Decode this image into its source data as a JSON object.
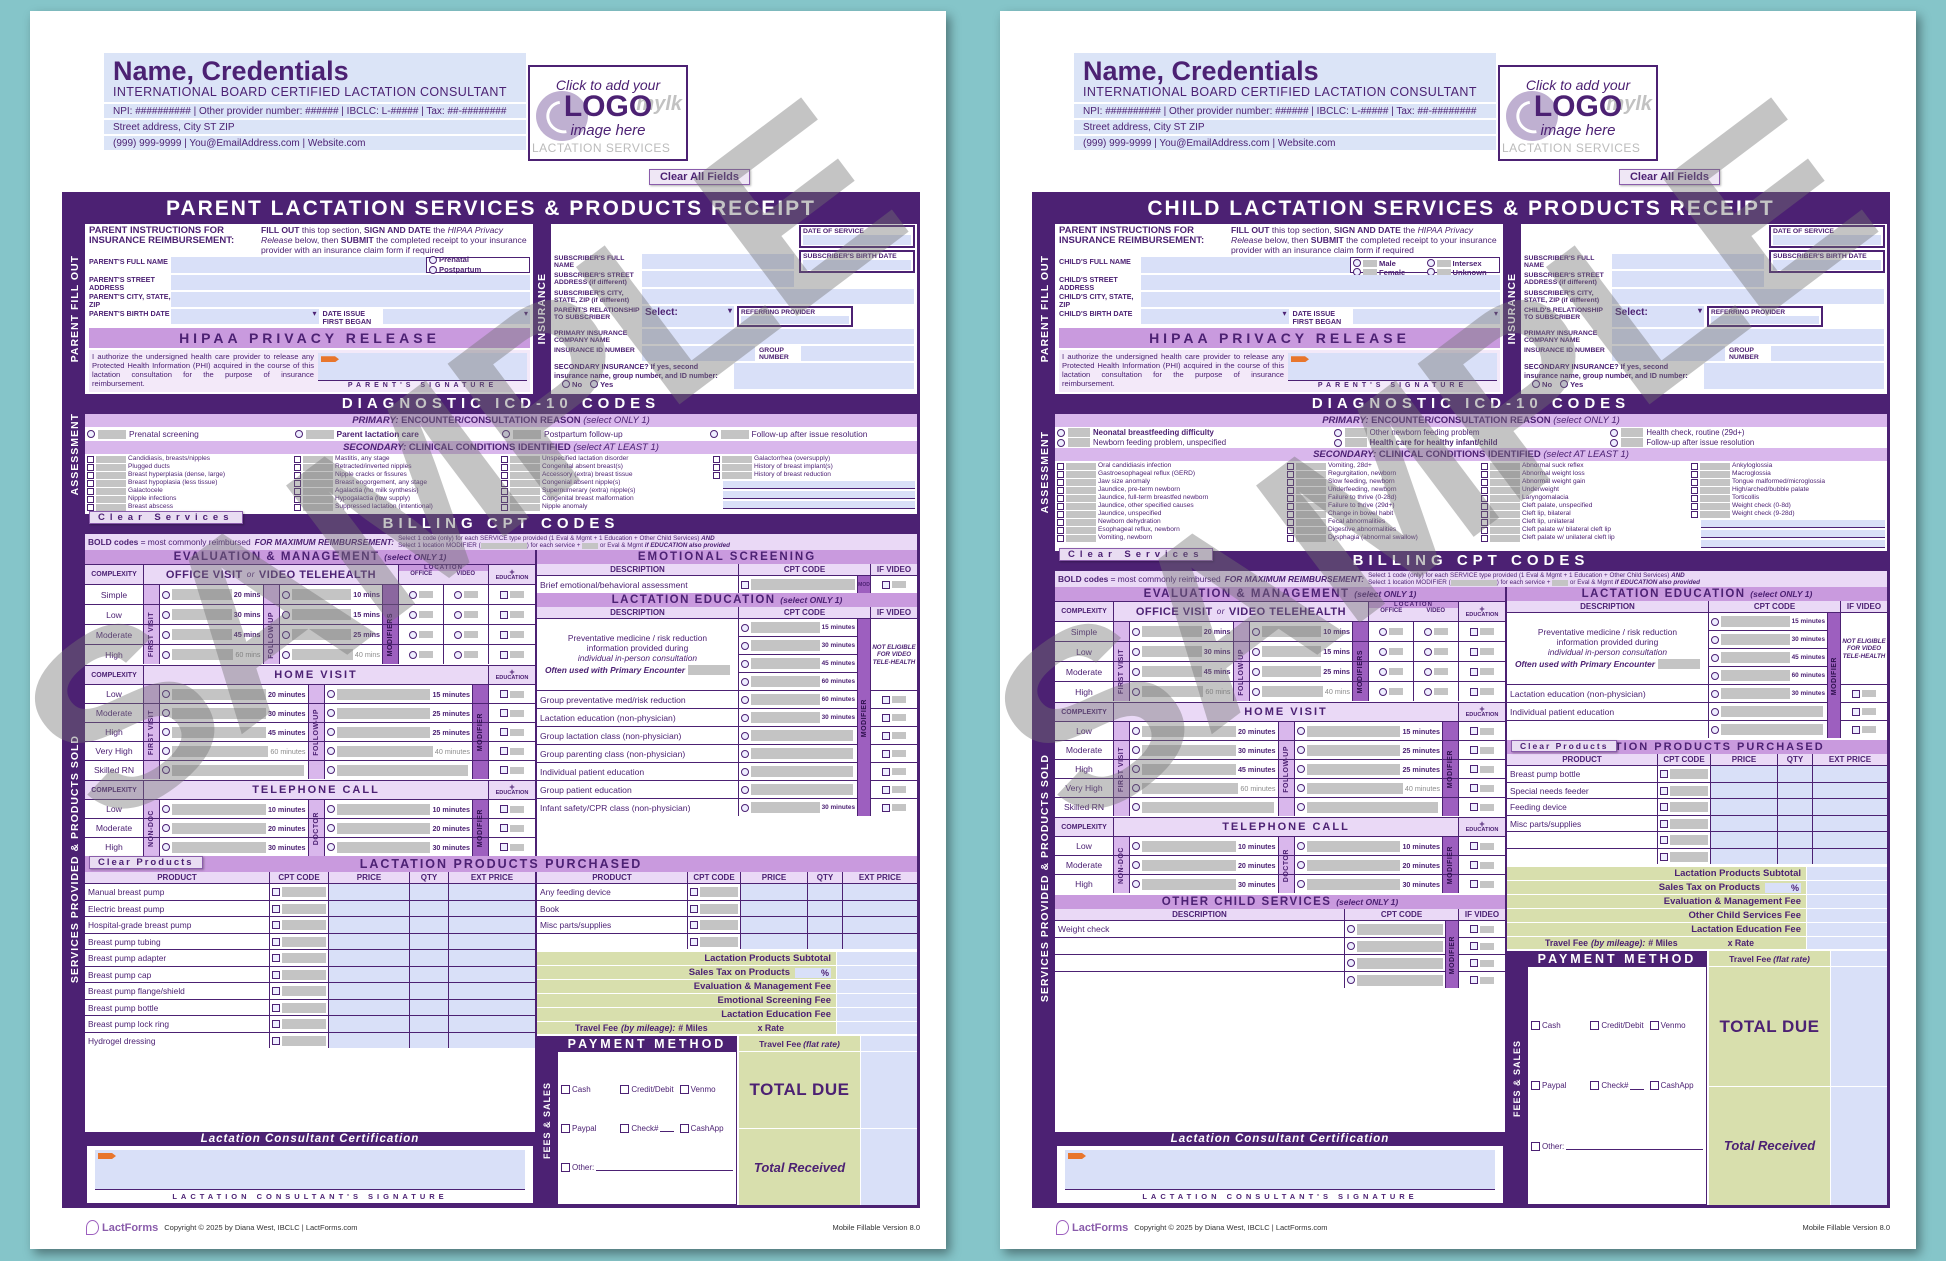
{
  "shared": {
    "watermark": "SAMPLE",
    "header": {
      "name": "Name, Credentials",
      "credential": "INTERNATIONAL BOARD CERTIFIED LACTATION CONSULTANT",
      "npi_line": "NPI: ########## | Other provider number: ###### | IBCLC: L-##### | Tax:  ##-########",
      "address_line": "Street address, City ST ZIP",
      "contact_line": "(999) 999-9999 | You@EmailAddress.com | Website.com",
      "logo_line1": "Click to add your",
      "logo_line2": "LOGO",
      "logo_line3": "image here",
      "logo_wm1": "mylk",
      "logo_wm2": "LACTATION SERVICES",
      "clear_all": "Clear All Fields"
    },
    "rails": {
      "fill_out": "PARENT FILL OUT",
      "insurance": "INSURANCE",
      "assessment": "ASSESSMENT",
      "services": "SERVICES PROVIDED & PRODUCTS SOLD",
      "fees": "FEES & SALES"
    },
    "instructions": {
      "s1": "FILL OUT",
      "s2": " this top section, ",
      "s3": "SIGN AND DATE",
      "s4": " the ",
      "s5": "HIPAA Privacy Release",
      "s6": " below, then ",
      "s7": "SUBMIT",
      "s8": " the completed receipt to your insurance provider with an insurance claim form if required"
    },
    "fields": {
      "date_issue": "DATE ISSUE FIRST BEGAN",
      "date_of_service": "DATE OF SERVICE",
      "subscriber_birth": "SUBSCRIBER'S BIRTH DATE",
      "sub_name": "SUBSCRIBER'S FULL NAME",
      "sub_street": "SUBSCRIBER'S STREET ADDRESS (if different)",
      "sub_city": "SUBSCRIBER'S CITY, STATE, ZIP (if different)",
      "select": "Select:",
      "referring": "REFERRING PROVIDER",
      "primary_ins": "PRIMARY INSURANCE COMPANY NAME",
      "ins_id": "INSURANCE ID NUMBER",
      "group_num": "GROUP NUMBER",
      "secondary_q": "SECONDARY INSURANCE?  If yes, second insurance name, group number, and ID number:",
      "no": "No",
      "yes": "Yes"
    },
    "hipaa": {
      "title": "HIPAA PRIVACY RELEASE",
      "body": "I authorize the undersigned health care provider to release any Protected Health Information (PHI) acquired in the course of this lactation consultation for the purpose of insurance reimbursement.",
      "parent_sig": "PARENT'S SIGNATURE"
    },
    "diagnostic": {
      "title": "DIAGNOSTIC ICD-10 CODES",
      "primary_label": "PRIMARY:",
      "primary_text": "ENCOUNTER/CONSULTATION REASON",
      "primary_note": "(select ONLY 1)",
      "secondary_label": "SECONDARY:",
      "secondary_text": "CLINICAL CONDITIONS IDENTIFIED",
      "secondary_note": "(select AT LEAST 1)"
    },
    "billing": {
      "clear_services": "Clear Services",
      "title": "BILLING CPT CODES",
      "bold_note_b": "BOLD codes",
      "bold_note_r": " = most commonly reimbursed",
      "max_note": "FOR MAXIMUM REIMBURSEMENT:",
      "fine1a": "Select 1 code (only) for each SERVICE type provided (1 Eval & Mgmt + 1 Education + Other Child Services) ",
      "fine1b": "AND",
      "fine2a": "Select 1 location MODIFIER (",
      "fine2b": ") for each service + ",
      "fine2c": " or Eval & Mgmt ",
      "fine2d": "if EDUCATION also provided"
    },
    "em": {
      "title": "EVALUATION & MANAGEMENT",
      "note": "(select ONLY 1)",
      "complexity": "COMPLEXITY",
      "ov1": "OFFICE VISIT",
      "ov_or": "or",
      "ov2": "VIDEO TELEHEALTH",
      "location": "LOCATION",
      "office": "OFFICE",
      "video": "VIDEO",
      "plus": "+",
      "education": "EDUCATION",
      "first_visit": "FIRST VISIT",
      "follow_up": "FOLLOW-UP",
      "modifiers": "MODIFIERS",
      "modifier": "MODIFIER",
      "rows": [
        {
          "c": "Simple",
          "m1": "20 mins",
          "m2": "10 mins"
        },
        {
          "c": "Low",
          "m1": "30 mins",
          "m2": "15 mins"
        },
        {
          "c": "Moderate",
          "m1": "45 mins",
          "m2": "25 mins"
        },
        {
          "c": "High",
          "m1": "60 mins",
          "m2": "40 mins",
          "dim": 1
        }
      ]
    },
    "home": {
      "title": "HOME VISIT",
      "rows": [
        {
          "c": "Low",
          "m1": "20 minutes",
          "m2": "15 minutes"
        },
        {
          "c": "Moderate",
          "m1": "30 minutes",
          "m2": "25 minutes"
        },
        {
          "c": "High",
          "m1": "45 minutes",
          "m2": "25 minutes"
        },
        {
          "c": "Very High",
          "m1": "60 minutes",
          "m2": "40 minutes",
          "dim": 1
        },
        {
          "c": "Skilled RN",
          "m1": "",
          "m2": ""
        }
      ]
    },
    "phone": {
      "title": "TELEPHONE CALL",
      "nondoc": "NON-DOC",
      "doctor": "DOCTOR",
      "rows": [
        {
          "c": "Low",
          "m1": "10 minutes",
          "m2": "10 minutes"
        },
        {
          "c": "Moderate",
          "m1": "20 minutes",
          "m2": "20 minutes"
        },
        {
          "c": "High",
          "m1": "30 minutes",
          "m2": "30 minutes"
        }
      ]
    },
    "tables": {
      "description": "DESCRIPTION",
      "cpt_code": "CPT CODE",
      "if_video": "IF VIDEO",
      "mod": "MOD",
      "product": "PRODUCT",
      "price": "PRICE",
      "qty": "QTY",
      "ext_price": "EXT PRICE"
    },
    "education": {
      "title": "LACTATION EDUCATION",
      "note": "(select ONLY 1)",
      "prev1": "Preventative medicine / risk reduction",
      "prev2": "information provided during",
      "prev3": "individual in-person consultation",
      "prev_note": "Often used with Primary Encounter",
      "not_eligible": "NOT ELIGIBLE FOR VIDEO TELE-HEALTH",
      "prev_rows": [
        {
          "m": "15 minutes"
        },
        {
          "m": "30 minutes"
        },
        {
          "m": "45 minutes"
        },
        {
          "m": "60 minutes",
          "b": 1
        }
      ]
    },
    "products": {
      "title": "LACTATION PRODUCTS PURCHASED",
      "clear": "Clear Products"
    },
    "fees": {
      "pct": "%",
      "travel_l1": "Travel Fee ",
      "travel_l2": "(by mileage):",
      "miles": "# Miles",
      "x_rate": "x Rate",
      "travel_flat1": "Travel Fee ",
      "travel_flat2": "(flat rate)",
      "total_due": "TOTAL DUE",
      "total_received": "Total Received"
    },
    "payment": {
      "title": "PAYMENT METHOD",
      "cash": "Cash",
      "credit": "Credit/Debit",
      "venmo": "Venmo",
      "paypal": "Paypal",
      "check": "Check#",
      "cashapp": "CashApp",
      "other": "Other:"
    },
    "cert": {
      "title": "Lactation Consultant Certification",
      "sig": "LACTATION CONSULTANT'S SIGNATURE"
    },
    "footer": {
      "logo": "LactForms",
      "copyright": "Copyright © 2025 by Diana West, IBCLC | LactForms.com",
      "version": "Mobile Fillable Version 8.0"
    }
  },
  "parent": {
    "title": "PARENT LACTATION SERVICES & PRODUCTS RECEIPT",
    "instr_label": "PARENT INSTRUCTIONS FOR INSURANCE REIMBURSEMENT:",
    "f_name": "PARENT'S FULL NAME",
    "f_street": "PARENT'S STREET ADDRESS",
    "f_city": "PARENT'S CITY, STATE, ZIP",
    "f_birth": "PARENT'S BIRTH DATE",
    "rel_label": "PARENT'S RELATIONSHIP TO SUBSCRIBER",
    "radios": [
      {
        "t": "Prenatal"
      },
      {
        "t": "Postpartum"
      }
    ],
    "primary": [
      {
        "t": "Prenatal screening"
      },
      {
        "t": "Parent lactation care",
        "b": 1
      },
      {
        "t": "Postpartum follow-up"
      },
      {
        "t": "Follow-up after issue resolution"
      }
    ],
    "sec1": [
      "Candidiasis, breasts/nipples",
      "Plugged ducts",
      "Breast hyperplasia (dense, large)",
      "Breast hypoplasia (less tissue)",
      "Galactocele",
      "Nipple infections",
      "Breast abscess"
    ],
    "sec2": [
      "Mastitis, any stage",
      "Retracted/inverted nipples",
      "Nipple cracks or fissures",
      "Breast engorgement, any stage",
      "Agalactia (no milk synthesis)",
      "Hypogalactia (low supply)",
      "Suppressed lactation (intentional)"
    ],
    "sec3": [
      "Unspecified lactation disorder",
      "Congenital absent breast(s)",
      "Accessory (extra) breast tissue",
      "Congenial absent nipple(s)",
      "Supernumerary (extra) nipple(s)",
      "Congenital breast malformation",
      "Nipple anomaly"
    ],
    "sec4": [
      "Galactorrhea (oversupply)",
      "History of breast implant(s)",
      "History of breast reduction"
    ],
    "es_title": "EMOTIONAL SCREENING",
    "es_row": "Brief emotional/behavioral assessment",
    "le_rows": [
      {
        "t": "Group preventative med/risk reduction",
        "m": "60 minutes"
      },
      {
        "t": "Lactation education (non-physician)",
        "m": "30 minutes"
      },
      {
        "t": "Group lactation class (non-physician)",
        "m": ""
      },
      {
        "t": "Group parenting class (non-physician)",
        "m": ""
      },
      {
        "t": "Individual patient education",
        "m": ""
      },
      {
        "t": "Group patient education",
        "m": ""
      },
      {
        "t": "Infant safety/CPR class (non-physician)",
        "m": "30 minutes"
      }
    ],
    "products1": [
      "Manual breast pump",
      "Electric breast pump",
      "Hospital-grade breast pump",
      "Breast pump tubing",
      "Breast pump adapter",
      "Breast pump cap",
      "Breast pump flange/shield",
      "Breast pump bottle",
      "Breast pump lock ring",
      "Hydrogel dressing"
    ],
    "products2": [
      "Any feeding device",
      "Book",
      "Misc parts/supplies",
      ""
    ],
    "fees": [
      {
        "t": "Lactation Products Subtotal"
      },
      {
        "t": "Sales Tax on Products",
        "pct": 1
      },
      {
        "t": "Evaluation & Management Fee"
      },
      {
        "t": "Emotional Screening Fee"
      },
      {
        "t": "Lactation Education Fee"
      }
    ]
  },
  "child": {
    "title": "CHILD LACTATION SERVICES & PRODUCTS RECEIPT",
    "instr_label": "PARENT INSTRUCTIONS FOR INSURANCE REIMBURSEMENT:",
    "f_name": "CHILD'S FULL NAME",
    "f_street": "CHILD'S STREET ADDRESS",
    "f_city": "CHILD'S CITY, STATE, ZIP",
    "f_birth": "CHILD'S BIRTH DATE",
    "rel_label": "CHILD'S RELATIONSHIP TO SUBSCRIBER",
    "radios": [
      {
        "t": "Male"
      },
      {
        "t": "Intersex"
      },
      {
        "t": "Female"
      },
      {
        "t": "Unknown"
      }
    ],
    "primary": [
      {
        "t": "Neonatal breastfeeding difficulty",
        "b": 1
      },
      {
        "t": "Other newborn feeding problem"
      },
      {
        "t": "Health check, routine (29d+)"
      },
      {
        "t": "Newborn feeding problem, unspecified"
      },
      {
        "t": "Health care for healthy infant/child",
        "b": 1
      },
      {
        "t": "Follow-up after issue resolution"
      }
    ],
    "sec1": [
      "Oral candidiasis infection",
      "Gastroesophageal reflux (GERD)",
      "Jaw size anomaly",
      "Jaundice, pre-term newborn",
      "Jaundice, full-term breastfed newborn",
      "Jaundice, other specified causes",
      "Jaundice, unspecified",
      "Newborn dehydration",
      "Esophageal reflux, newborn",
      "Vomiting, newborn"
    ],
    "sec2": [
      "Vomiting, 28d+",
      "Regurgitation, newborn",
      "Slow feeding, newborn",
      "Underfeeding, newborn",
      "Failure to thrive (0-28d)",
      "Failure to thrive (29d+)",
      "Change in bowel habit",
      "Fecal abnormalities",
      "Digestive abnormalities",
      "Dysphagia (abnormal swallow)"
    ],
    "sec3": [
      "Abnormal suck reflex",
      "Abnormal weight loss",
      "Abnormal weight gain",
      "Underweight",
      "Laryngomalacia",
      "Cleft palate, unspecified",
      "Cleft lip, bilateral",
      "Cleft lip, unilateral",
      "Cleft palate w/ bilateral cleft lip",
      "Cleft palate w/ unilateral cleft lip"
    ],
    "sec4": [
      "Ankyloglossia",
      "Macroglossia",
      "Tongue malformed/microglossia",
      "High/arched/bubble palate",
      "Torticollis",
      "Weight check (0-8d)",
      "Weight check (9-28d)"
    ],
    "le_rows": [
      {
        "t": "Lactation education (non-physician)",
        "m": "30 minutes"
      },
      {
        "t": "Individual patient education",
        "m": ""
      },
      {
        "t": "",
        "m": ""
      }
    ],
    "products1": [
      "Breast pump bottle",
      "Special needs feeder",
      "Feeding device",
      "Misc parts/supplies",
      "",
      ""
    ],
    "other": {
      "title": "OTHER CHILD SERVICES",
      "note": "(select ONLY 1)",
      "rows": [
        "Weight check",
        "",
        "",
        ""
      ]
    },
    "fees": [
      {
        "t": "Lactation Products Subtotal"
      },
      {
        "t": "Sales Tax on Products",
        "pct": 1
      },
      {
        "t": "Evaluation & Management Fee"
      },
      {
        "t": "Other Child Services Fee"
      },
      {
        "t": "Lactation Education Fee"
      }
    ]
  }
}
